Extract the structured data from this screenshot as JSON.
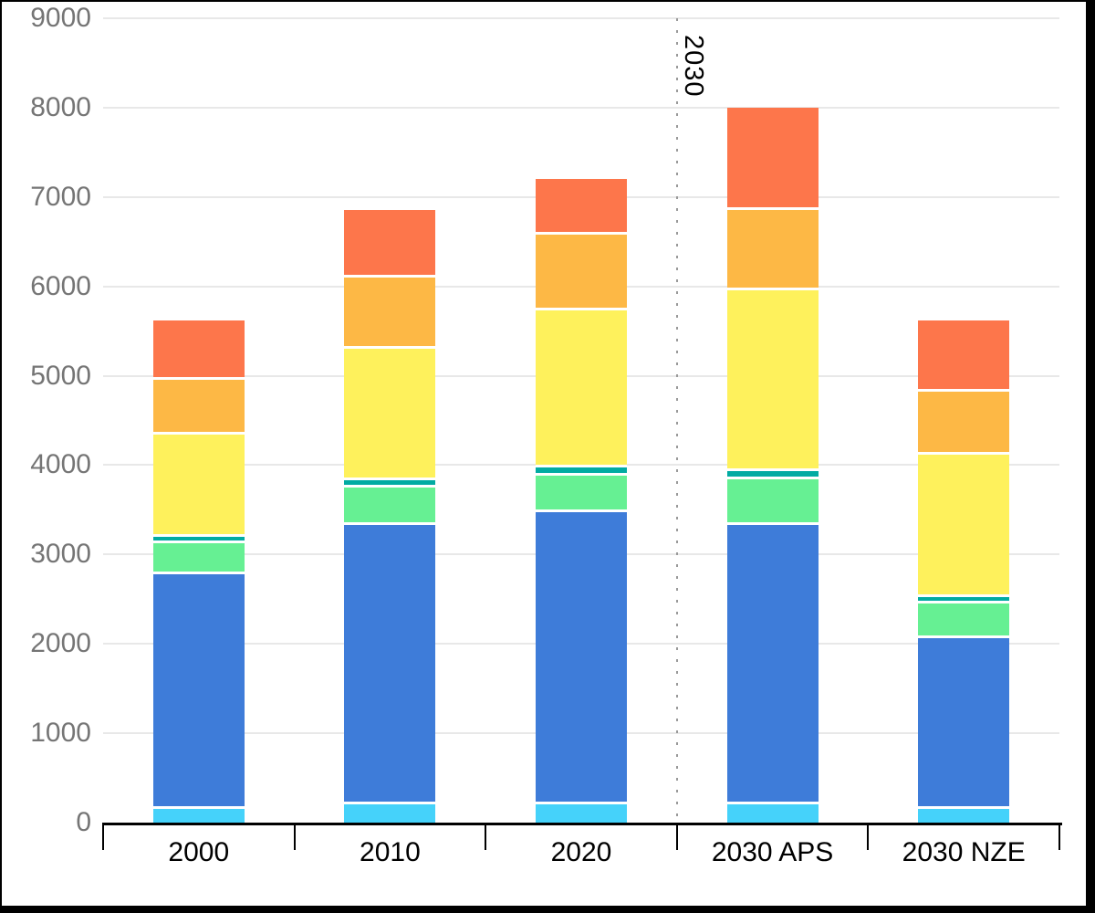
{
  "chart_data": {
    "type": "bar",
    "stacked": true,
    "title": "",
    "categories": [
      "2000",
      "2010",
      "2020",
      "2030 APS",
      "2030 NZE"
    ],
    "series": [
      {
        "name": "cyan",
        "color": "#45D2FA",
        "values": [
          150,
          200,
          200,
          200,
          150
        ]
      },
      {
        "name": "blue",
        "color": "#3E7CD9",
        "values": [
          2630,
          3130,
          3270,
          3130,
          1910
        ]
      },
      {
        "name": "green",
        "color": "#66F093",
        "values": [
          350,
          420,
          410,
          510,
          390
        ]
      },
      {
        "name": "teal",
        "color": "#01ABA2",
        "values": [
          70,
          80,
          90,
          90,
          70
        ]
      },
      {
        "name": "yellow",
        "color": "#FEF15C",
        "values": [
          1140,
          1470,
          1760,
          2030,
          1600
        ]
      },
      {
        "name": "orange",
        "color": "#FDB845",
        "values": [
          610,
          800,
          850,
          890,
          700
        ]
      },
      {
        "name": "red-orange",
        "color": "#FD764B",
        "values": [
          670,
          750,
          620,
          1150,
          800
        ]
      }
    ],
    "totals": [
      5620,
      6850,
      7200,
      8000,
      5620
    ],
    "xlabel": "",
    "ylabel": "",
    "ylim": [
      0,
      9000
    ],
    "y_ticks": [
      "0",
      "1000",
      "2000",
      "3000",
      "4000",
      "5000",
      "6000",
      "7000",
      "8000",
      "9000"
    ],
    "grid": true,
    "legend": "none",
    "annotation": {
      "label": "2030",
      "style": "dotted-vertical-line",
      "position": "boundary between 2020 and 2030 APS"
    },
    "colors": {
      "gridline": "#E8E8E8",
      "axis": "#000000",
      "y_label": "#757575",
      "x_label": "#000000",
      "dotted_line": "#999999",
      "segment_border": "#FFFFFF",
      "figure_border": "#000000",
      "background": "#FFFFFF"
    }
  }
}
